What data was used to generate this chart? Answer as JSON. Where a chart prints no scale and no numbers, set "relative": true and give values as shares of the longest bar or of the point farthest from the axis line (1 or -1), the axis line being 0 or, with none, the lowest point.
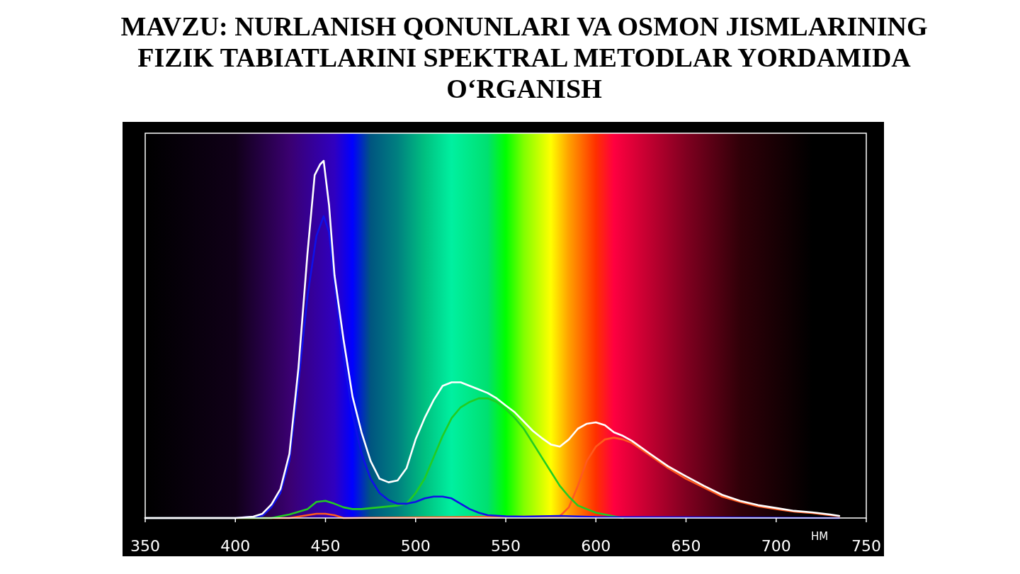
{
  "chart_data": {
    "type": "line",
    "title": "MAVZU: NURLANISH QONUNLARI VA OSMON JISMLARINING FIZIK TABIATLARINI SPEKTRAL METODLAR YORDAMIDA O‘RGANISH",
    "xlabel": "НМ",
    "relative": true,
    "xlim": [
      350,
      750
    ],
    "xticks": [
      350,
      400,
      450,
      500,
      550,
      600,
      650,
      700,
      750
    ],
    "tick_labels": "x",
    "grid": false,
    "series": [
      {
        "color": "#ff5a1e",
        "x": [
          350,
          400,
          430,
          440,
          445,
          450,
          455,
          460,
          580,
          585,
          590,
          595,
          600,
          605,
          610,
          615,
          620,
          630,
          640,
          650,
          660,
          670,
          680,
          690,
          700,
          710,
          720,
          730,
          735
        ],
        "values": [
          0,
          0,
          0,
          0.008,
          0.012,
          0.012,
          0.008,
          0,
          0.005,
          0.03,
          0.09,
          0.16,
          0.2,
          0.22,
          0.225,
          0.22,
          0.21,
          0.175,
          0.14,
          0.11,
          0.085,
          0.06,
          0.045,
          0.033,
          0.025,
          0.018,
          0.014,
          0.008,
          0.005
        ]
      },
      {
        "color": "#22cc22",
        "x": [
          350,
          420,
          430,
          440,
          445,
          450,
          455,
          460,
          465,
          470,
          480,
          490,
          495,
          500,
          505,
          510,
          515,
          520,
          525,
          530,
          535,
          540,
          545,
          550,
          555,
          560,
          565,
          570,
          575,
          580,
          585,
          590,
          600,
          610,
          615
        ],
        "values": [
          0,
          0,
          0.01,
          0.025,
          0.045,
          0.048,
          0.04,
          0.03,
          0.025,
          0.025,
          0.03,
          0.035,
          0.04,
          0.07,
          0.11,
          0.17,
          0.23,
          0.28,
          0.31,
          0.325,
          0.335,
          0.335,
          0.325,
          0.305,
          0.28,
          0.25,
          0.21,
          0.17,
          0.13,
          0.09,
          0.06,
          0.035,
          0.015,
          0.005,
          0
        ]
      },
      {
        "color": "#1010e8",
        "x": [
          350,
          400,
          415,
          420,
          425,
          430,
          435,
          440,
          445,
          449,
          452,
          455,
          460,
          465,
          470,
          475,
          480,
          485,
          490,
          495,
          500,
          505,
          510,
          515,
          520,
          525,
          530,
          535,
          540,
          550,
          560,
          580,
          600,
          650,
          735
        ],
        "values": [
          0,
          0,
          0.006,
          0.03,
          0.07,
          0.16,
          0.38,
          0.62,
          0.79,
          0.845,
          0.8,
          0.66,
          0.45,
          0.29,
          0.18,
          0.11,
          0.07,
          0.05,
          0.04,
          0.04,
          0.045,
          0.055,
          0.06,
          0.06,
          0.055,
          0.04,
          0.025,
          0.015,
          0.008,
          0.005,
          0.004,
          0.006,
          0.003,
          0.002,
          0
        ]
      },
      {
        "color": "#ffffff",
        "x": [
          350,
          400,
          410,
          415,
          420,
          425,
          430,
          435,
          440,
          444,
          447,
          449,
          452,
          455,
          460,
          465,
          470,
          475,
          480,
          485,
          490,
          495,
          500,
          505,
          510,
          515,
          520,
          525,
          530,
          535,
          540,
          545,
          550,
          555,
          560,
          565,
          570,
          575,
          580,
          585,
          590,
          595,
          600,
          605,
          610,
          615,
          620,
          630,
          640,
          650,
          660,
          670,
          680,
          690,
          700,
          710,
          720,
          730,
          735
        ],
        "values": [
          0,
          0,
          0.004,
          0.012,
          0.038,
          0.081,
          0.18,
          0.42,
          0.74,
          0.96,
          0.99,
          1,
          0.875,
          0.68,
          0.5,
          0.34,
          0.24,
          0.16,
          0.11,
          0.1,
          0.105,
          0.14,
          0.22,
          0.28,
          0.33,
          0.37,
          0.38,
          0.38,
          0.37,
          0.36,
          0.35,
          0.335,
          0.315,
          0.296,
          0.27,
          0.244,
          0.224,
          0.206,
          0.2,
          0.22,
          0.25,
          0.264,
          0.268,
          0.26,
          0.24,
          0.23,
          0.216,
          0.18,
          0.145,
          0.117,
          0.09,
          0.065,
          0.048,
          0.036,
          0.028,
          0.02,
          0.016,
          0.01,
          0.006
        ]
      }
    ]
  }
}
